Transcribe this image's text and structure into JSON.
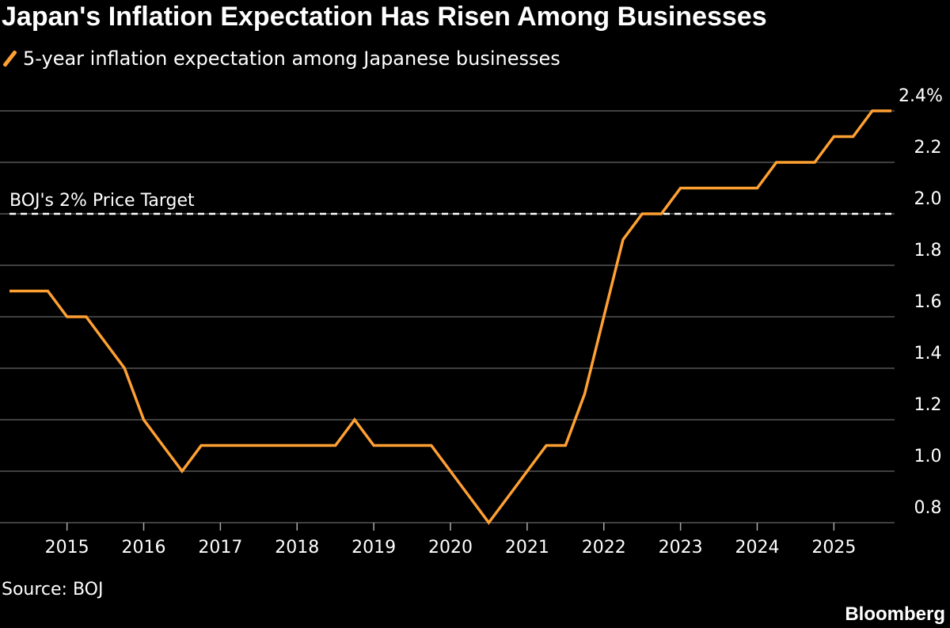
{
  "title": "Japan's Inflation Expectation Has Risen Among Businesses",
  "source": "Source: BOJ",
  "brand": "Bloomberg",
  "colors": {
    "background": "#000000",
    "series": "#ffa033",
    "grid": "#555555",
    "text": "#ffffff"
  },
  "chart_data": {
    "type": "line",
    "title": "Japan's Inflation Expectation Has Risen Among Businesses",
    "xlabel": "",
    "ylabel": "",
    "grid": true,
    "legend_position": "top-left",
    "ylim": [
      0.8,
      2.4
    ],
    "xlim": [
      2014.25,
      2025.75
    ],
    "y_ticks": [
      {
        "value": 0.8,
        "label": "0.8"
      },
      {
        "value": 1.0,
        "label": "1.0"
      },
      {
        "value": 1.2,
        "label": "1.2"
      },
      {
        "value": 1.4,
        "label": "1.4"
      },
      {
        "value": 1.6,
        "label": "1.6"
      },
      {
        "value": 1.8,
        "label": "1.8"
      },
      {
        "value": 2.0,
        "label": "2.0"
      },
      {
        "value": 2.2,
        "label": "2.2"
      },
      {
        "value": 2.4,
        "label": "2.4%"
      }
    ],
    "x_ticks": [
      {
        "value": 2015,
        "label": "2015"
      },
      {
        "value": 2016,
        "label": "2016"
      },
      {
        "value": 2017,
        "label": "2017"
      },
      {
        "value": 2018,
        "label": "2018"
      },
      {
        "value": 2019,
        "label": "2019"
      },
      {
        "value": 2020,
        "label": "2020"
      },
      {
        "value": 2021,
        "label": "2021"
      },
      {
        "value": 2022,
        "label": "2022"
      },
      {
        "value": 2023,
        "label": "2023"
      },
      {
        "value": 2024,
        "label": "2024"
      },
      {
        "value": 2025,
        "label": "2025"
      }
    ],
    "reference_line": {
      "value": 2.0,
      "label": "BOJ's 2% Price Target"
    },
    "series": [
      {
        "name": "5-year inflation expectation among Japanese businesses",
        "color": "#ffa033",
        "x": [
          2014.25,
          2014.5,
          2014.75,
          2015.0,
          2015.25,
          2015.5,
          2015.75,
          2016.0,
          2016.25,
          2016.5,
          2016.75,
          2017.0,
          2017.25,
          2017.5,
          2017.75,
          2018.0,
          2018.25,
          2018.5,
          2018.75,
          2019.0,
          2019.25,
          2019.5,
          2019.75,
          2020.0,
          2020.25,
          2020.5,
          2020.75,
          2021.0,
          2021.25,
          2021.5,
          2021.75,
          2022.0,
          2022.25,
          2022.5,
          2022.75,
          2023.0,
          2023.25,
          2023.5,
          2023.75,
          2024.0,
          2024.25,
          2024.5,
          2024.75,
          2025.0,
          2025.25,
          2025.5,
          2025.75
        ],
        "values": [
          1.7,
          1.7,
          1.7,
          1.6,
          1.6,
          1.5,
          1.4,
          1.2,
          1.1,
          1.0,
          1.1,
          1.1,
          1.1,
          1.1,
          1.1,
          1.1,
          1.1,
          1.1,
          1.2,
          1.1,
          1.1,
          1.1,
          1.1,
          1.0,
          0.9,
          0.8,
          0.9,
          1.0,
          1.1,
          1.1,
          1.3,
          1.6,
          1.9,
          2.0,
          2.0,
          2.1,
          2.1,
          2.1,
          2.1,
          2.1,
          2.2,
          2.2,
          2.2,
          2.3,
          2.3,
          2.4,
          2.4
        ]
      }
    ]
  }
}
